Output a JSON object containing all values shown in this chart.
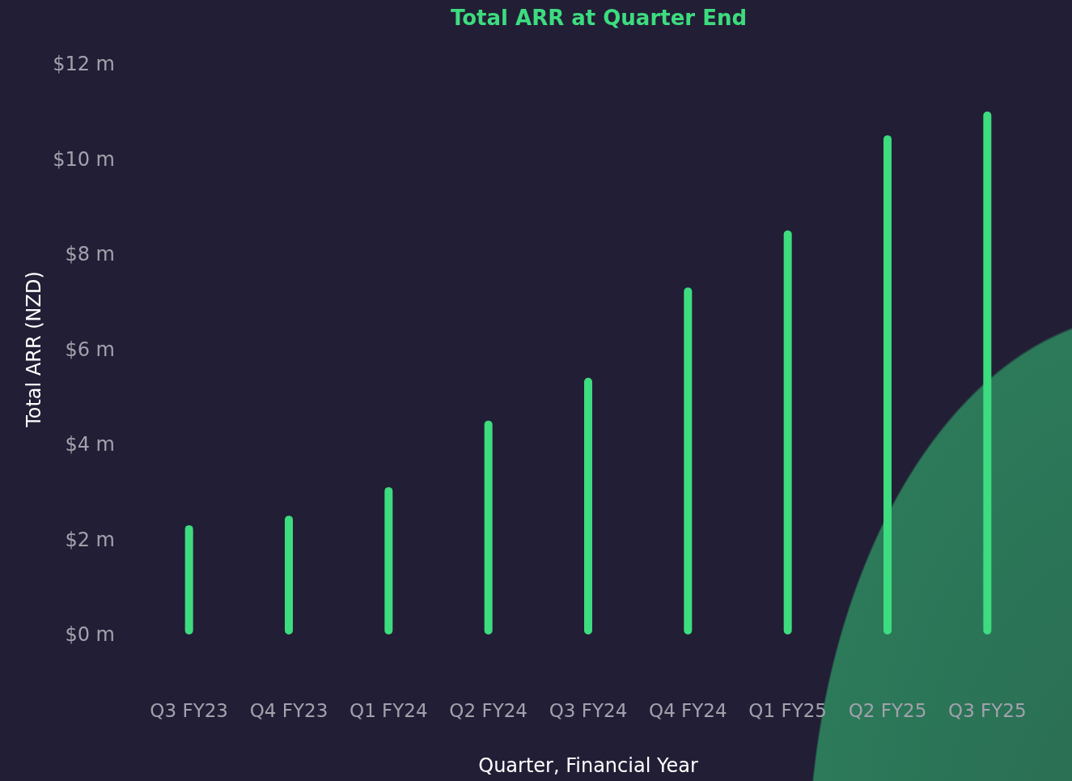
{
  "chart_data": {
    "type": "bar",
    "title": "Total ARR at Quarter End",
    "xlabel": "Quarter, Financial Year",
    "ylabel": "Total ARR (NZD)",
    "categories": [
      "Q3 FY23",
      "Q4 FY23",
      "Q1 FY24",
      "Q2 FY24",
      "Q3 FY24",
      "Q4 FY24",
      "Q1 FY25",
      "Q2 FY25",
      "Q3 FY25"
    ],
    "values": [
      2.3,
      2.5,
      3.1,
      4.5,
      5.4,
      7.3,
      8.5,
      10.5,
      11.0
    ],
    "color": "#3ddc7f",
    "ylim": [
      0,
      12
    ],
    "yticks": [
      {
        "value": 0,
        "label": "$0 m"
      },
      {
        "value": 2,
        "label": "$2 m"
      },
      {
        "value": 4,
        "label": "$4 m"
      },
      {
        "value": 6,
        "label": "$6 m"
      },
      {
        "value": 8,
        "label": "$8 m"
      },
      {
        "value": 10,
        "label": "$10 m"
      },
      {
        "value": 12,
        "label": "$12 m"
      }
    ],
    "grid": false
  }
}
